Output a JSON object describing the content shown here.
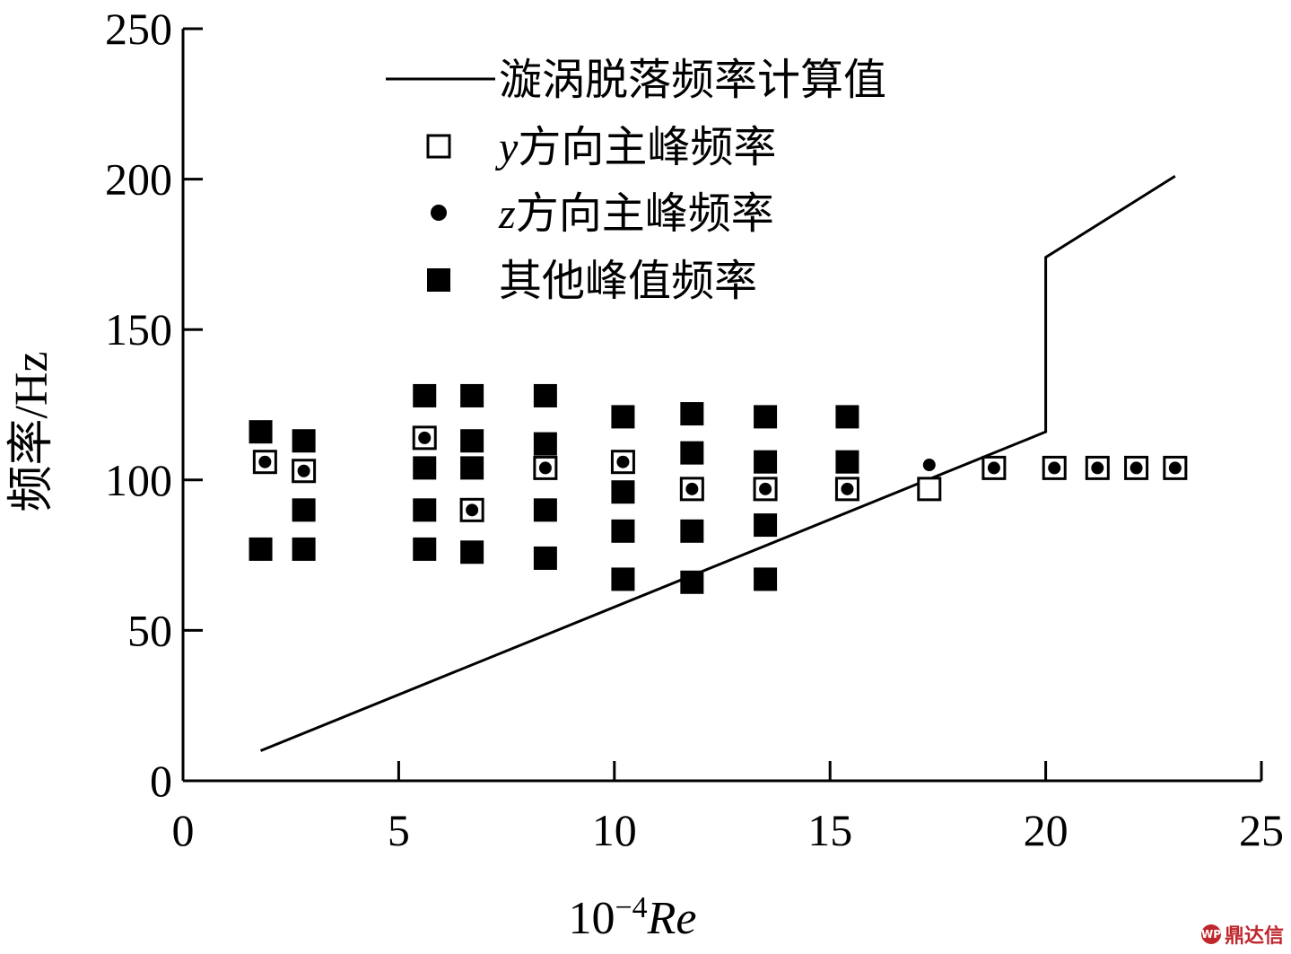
{
  "chart_data": {
    "type": "scatter",
    "xlabel_prefix": "10",
    "xlabel_exp": "−4",
    "xlabel_var": "Re",
    "ylabel": "频率/Hz",
    "xlim": [
      0,
      25
    ],
    "ylim": [
      0,
      250
    ],
    "xticks": [
      "0",
      "5",
      "10",
      "15",
      "20",
      "25"
    ],
    "yticks": [
      "0",
      "50",
      "100",
      "150",
      "200",
      "250"
    ],
    "xtick_values": [
      0,
      5,
      10,
      15,
      20,
      25
    ],
    "ytick_values": [
      0,
      50,
      100,
      150,
      200,
      250
    ],
    "grid": false,
    "legend_position": "top",
    "legend": [
      {
        "marker": "line",
        "label": "漩涡脱落频率计算值"
      },
      {
        "marker": "open-square",
        "label_var": "y",
        "label": "方向主峰频率"
      },
      {
        "marker": "dot",
        "label_var": "z",
        "label": "方向主峰频率"
      },
      {
        "marker": "filled-square",
        "label": "其他峰值频率"
      }
    ],
    "series": [
      {
        "name": "漩涡脱落频率计算值",
        "kind": "line",
        "points": [
          [
            1.8,
            10
          ],
          [
            20,
            116
          ],
          [
            20,
            174
          ],
          [
            23,
            201
          ]
        ]
      },
      {
        "name": "y方向主峰频率",
        "kind": "open-square",
        "points": [
          [
            1.9,
            106
          ],
          [
            2.8,
            103
          ],
          [
            5.6,
            114
          ],
          [
            6.7,
            90
          ],
          [
            8.4,
            104
          ],
          [
            10.2,
            106
          ],
          [
            11.8,
            97
          ],
          [
            13.5,
            97
          ],
          [
            15.4,
            97
          ],
          [
            17.3,
            97
          ],
          [
            18.8,
            104
          ],
          [
            20.2,
            104
          ],
          [
            21.2,
            104
          ],
          [
            22.1,
            104
          ],
          [
            23.0,
            104
          ]
        ]
      },
      {
        "name": "z方向主峰频率",
        "kind": "dot",
        "points": [
          [
            1.9,
            106
          ],
          [
            2.8,
            103
          ],
          [
            5.6,
            114
          ],
          [
            6.7,
            90
          ],
          [
            8.4,
            104
          ],
          [
            10.2,
            106
          ],
          [
            11.8,
            97
          ],
          [
            13.5,
            97
          ],
          [
            15.4,
            97
          ],
          [
            17.3,
            105
          ],
          [
            18.8,
            104
          ],
          [
            20.2,
            104
          ],
          [
            21.2,
            104
          ],
          [
            22.1,
            104
          ],
          [
            23.0,
            104
          ]
        ]
      },
      {
        "name": "其他峰值频率",
        "kind": "filled-square",
        "points": [
          [
            1.8,
            116
          ],
          [
            1.8,
            77
          ],
          [
            2.8,
            113
          ],
          [
            2.8,
            90
          ],
          [
            2.8,
            77
          ],
          [
            5.6,
            128
          ],
          [
            5.6,
            104
          ],
          [
            5.6,
            90
          ],
          [
            5.6,
            77
          ],
          [
            6.7,
            128
          ],
          [
            6.7,
            113
          ],
          [
            6.7,
            104
          ],
          [
            6.7,
            76
          ],
          [
            8.4,
            128
          ],
          [
            8.4,
            112
          ],
          [
            8.4,
            90
          ],
          [
            8.4,
            74
          ],
          [
            10.2,
            121
          ],
          [
            10.2,
            96
          ],
          [
            10.2,
            83
          ],
          [
            10.2,
            67
          ],
          [
            11.8,
            122
          ],
          [
            11.8,
            109
          ],
          [
            11.8,
            83
          ],
          [
            11.8,
            66
          ],
          [
            13.5,
            121
          ],
          [
            13.5,
            106
          ],
          [
            13.5,
            85
          ],
          [
            13.5,
            67
          ],
          [
            15.4,
            121
          ],
          [
            15.4,
            106
          ]
        ]
      }
    ]
  },
  "watermark": {
    "text": "鼎达信",
    "logo": "WP"
  }
}
